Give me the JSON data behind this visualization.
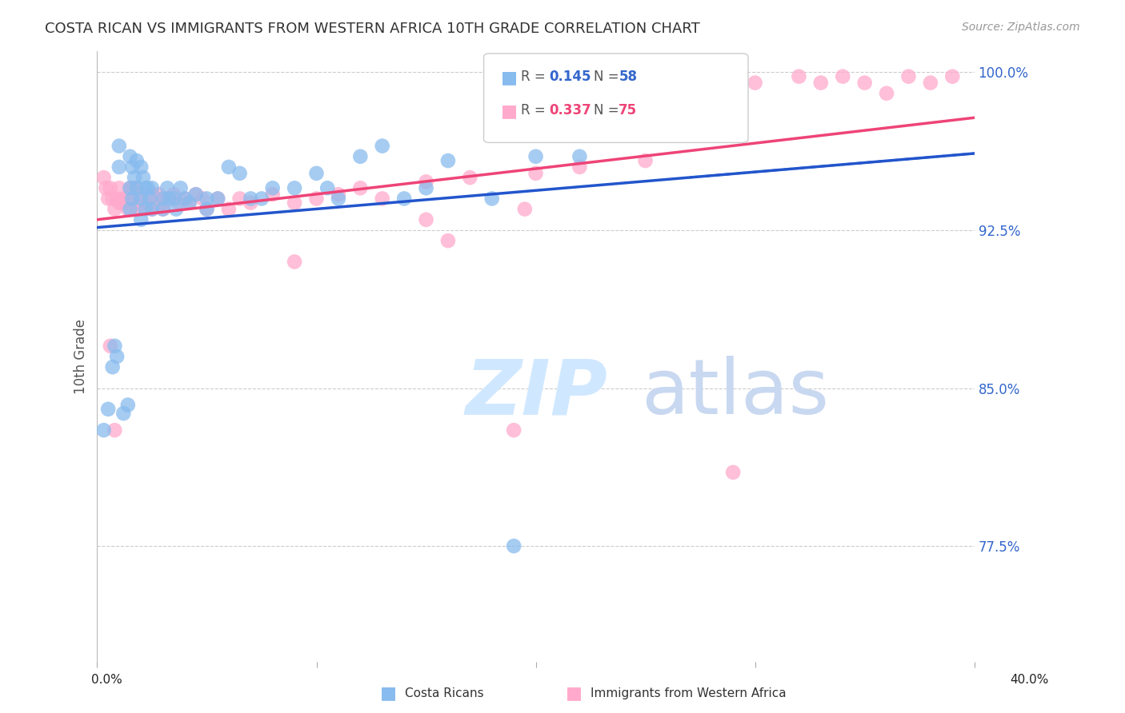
{
  "title": "COSTA RICAN VS IMMIGRANTS FROM WESTERN AFRICA 10TH GRADE CORRELATION CHART",
  "source_text": "Source: ZipAtlas.com",
  "ylabel": "10th Grade",
  "xlim": [
    0.0,
    0.4
  ],
  "ylim": [
    0.72,
    1.01
  ],
  "yticks": [
    0.775,
    0.85,
    0.925,
    1.0
  ],
  "ytick_labels": [
    "77.5%",
    "85.0%",
    "92.5%",
    "100.0%"
  ],
  "bg_color": "#ffffff",
  "grid_color": "#cccccc",
  "blue_color": "#88bbee",
  "pink_color": "#ffaacc",
  "blue_line_color": "#2255cc",
  "pink_line_color": "#ee4477",
  "r_blue": "0.145",
  "n_blue": "58",
  "r_pink": "0.337",
  "n_pink": "75",
  "watermark_zip": "ZIP",
  "watermark_atlas": "atlas",
  "watermark_color_zip": "#d0e8ff",
  "watermark_color_atlas": "#c8d8f0",
  "blue_scatter_x": [
    0.01,
    0.01,
    0.015,
    0.015,
    0.015,
    0.016,
    0.016,
    0.017,
    0.018,
    0.018,
    0.02,
    0.02,
    0.02,
    0.021,
    0.022,
    0.022,
    0.023,
    0.024,
    0.025,
    0.025,
    0.03,
    0.03,
    0.032,
    0.033,
    0.035,
    0.036,
    0.038,
    0.04,
    0.042,
    0.045,
    0.05,
    0.05,
    0.055,
    0.06,
    0.065,
    0.07,
    0.075,
    0.08,
    0.09,
    0.1,
    0.105,
    0.11,
    0.12,
    0.13,
    0.14,
    0.15,
    0.16,
    0.18,
    0.2,
    0.22,
    0.003,
    0.005,
    0.007,
    0.008,
    0.009,
    0.012,
    0.014,
    0.19
  ],
  "blue_scatter_y": [
    0.965,
    0.955,
    0.96,
    0.945,
    0.935,
    0.955,
    0.94,
    0.95,
    0.958,
    0.945,
    0.955,
    0.94,
    0.93,
    0.95,
    0.945,
    0.935,
    0.945,
    0.94,
    0.945,
    0.935,
    0.94,
    0.935,
    0.945,
    0.94,
    0.94,
    0.935,
    0.945,
    0.94,
    0.938,
    0.942,
    0.94,
    0.935,
    0.94,
    0.955,
    0.952,
    0.94,
    0.94,
    0.945,
    0.945,
    0.952,
    0.945,
    0.94,
    0.96,
    0.965,
    0.94,
    0.945,
    0.958,
    0.94,
    0.96,
    0.96,
    0.83,
    0.84,
    0.86,
    0.87,
    0.865,
    0.838,
    0.842,
    0.775
  ],
  "pink_scatter_x": [
    0.005,
    0.008,
    0.01,
    0.01,
    0.012,
    0.014,
    0.015,
    0.015,
    0.016,
    0.016,
    0.017,
    0.018,
    0.018,
    0.019,
    0.02,
    0.02,
    0.021,
    0.022,
    0.023,
    0.024,
    0.025,
    0.025,
    0.026,
    0.027,
    0.028,
    0.03,
    0.03,
    0.032,
    0.035,
    0.037,
    0.04,
    0.042,
    0.045,
    0.048,
    0.05,
    0.055,
    0.06,
    0.065,
    0.07,
    0.08,
    0.09,
    0.1,
    0.11,
    0.12,
    0.13,
    0.15,
    0.17,
    0.2,
    0.22,
    0.25,
    0.003,
    0.004,
    0.006,
    0.007,
    0.009,
    0.011,
    0.013,
    0.28,
    0.3,
    0.32,
    0.33,
    0.34,
    0.35,
    0.36,
    0.37,
    0.38,
    0.39,
    0.15,
    0.16,
    0.195,
    0.006,
    0.008,
    0.09,
    0.19,
    0.29
  ],
  "pink_scatter_y": [
    0.94,
    0.935,
    0.945,
    0.938,
    0.94,
    0.935,
    0.945,
    0.94,
    0.945,
    0.938,
    0.94,
    0.935,
    0.945,
    0.942,
    0.94,
    0.935,
    0.94,
    0.942,
    0.938,
    0.94,
    0.942,
    0.935,
    0.938,
    0.94,
    0.942,
    0.938,
    0.935,
    0.94,
    0.942,
    0.938,
    0.94,
    0.938,
    0.942,
    0.94,
    0.935,
    0.94,
    0.935,
    0.94,
    0.938,
    0.942,
    0.938,
    0.94,
    0.942,
    0.945,
    0.94,
    0.948,
    0.95,
    0.952,
    0.955,
    0.958,
    0.95,
    0.945,
    0.945,
    0.94,
    0.94,
    0.938,
    0.94,
    0.99,
    0.995,
    0.998,
    0.995,
    0.998,
    0.995,
    0.99,
    0.998,
    0.995,
    0.998,
    0.93,
    0.92,
    0.935,
    0.87,
    0.83,
    0.91,
    0.83,
    0.81
  ]
}
